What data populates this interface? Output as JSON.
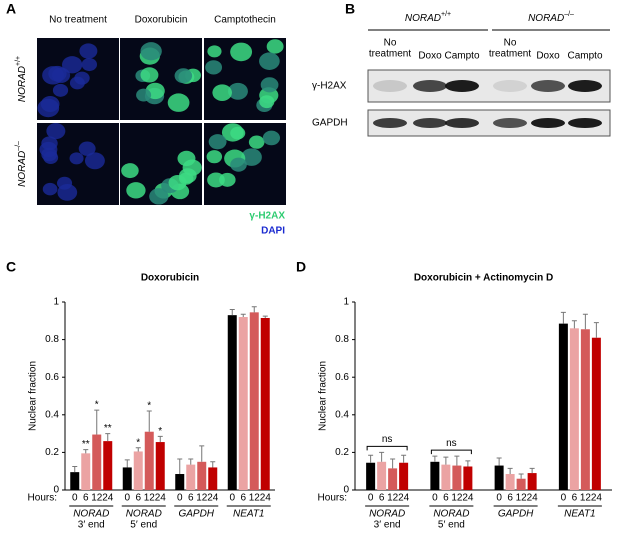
{
  "panel_a": {
    "label": "A",
    "columns": [
      "No treatment",
      "Doxorubicin",
      "Camptothecin"
    ],
    "rows": [
      {
        "name": "NORAD",
        "sup": "+/+"
      },
      {
        "name": "NORAD",
        "sup": "–/–"
      }
    ],
    "legend": [
      "γ-H2AX",
      "DAPI"
    ]
  },
  "panel_b": {
    "label": "B",
    "groups": [
      {
        "name": "NORAD",
        "sup": "+/+"
      },
      {
        "name": "NORAD",
        "sup": "–/–"
      }
    ],
    "lanes": [
      [
        "No",
        "treatment"
      ],
      [
        "Doxo"
      ],
      [
        "Campto"
      ],
      [
        "No",
        "treatment"
      ],
      [
        "Doxo"
      ],
      [
        "Campto"
      ]
    ],
    "rows": [
      "γ-H2AX",
      "GAPDH"
    ]
  },
  "chart_data": [
    {
      "type": "bar",
      "label": "C",
      "title": "Doxorubicin",
      "y_label": "Nuclear fraction",
      "x_prefix": "Hours:",
      "ylim": [
        0,
        1
      ],
      "yticks": [
        0,
        0.2,
        0.4,
        0.6,
        0.8,
        1
      ],
      "categories": [
        "NORAD",
        "NORAD",
        "GAPDH",
        "NEAT1"
      ],
      "category_sublabels": [
        "3′ end",
        "5′ end",
        null,
        null
      ],
      "brackets": [
        null,
        null,
        null,
        null
      ],
      "series": [
        {
          "name": "0",
          "color": "#000000",
          "values": [
            0.095,
            0.12,
            0.085,
            0.93
          ],
          "errors": [
            0.03,
            0.04,
            0.08,
            0.03
          ],
          "stars": [
            null,
            null,
            null,
            null
          ]
        },
        {
          "name": "6",
          "color": "#eba3a3",
          "values": [
            0.195,
            0.205,
            0.135,
            0.92
          ],
          "errors": [
            0.02,
            0.02,
            0.03,
            0.015
          ],
          "stars": [
            "**",
            "*",
            null,
            null
          ]
        },
        {
          "name": "12",
          "color": "#d45a5a",
          "values": [
            0.295,
            0.31,
            0.15,
            0.945
          ],
          "errors": [
            0.13,
            0.11,
            0.085,
            0.03
          ],
          "stars": [
            "*",
            "*",
            null,
            null
          ]
        },
        {
          "name": "24",
          "color": "#c00000",
          "values": [
            0.26,
            0.255,
            0.12,
            0.915
          ],
          "errors": [
            0.04,
            0.03,
            0.03,
            0.01
          ],
          "stars": [
            "**",
            "*",
            null,
            null
          ]
        }
      ]
    },
    {
      "type": "bar",
      "label": "D",
      "title": "Doxorubicin + Actinomycin D",
      "y_label": "Nuclear fraction",
      "x_prefix": "Hours:",
      "ylim": [
        0,
        1
      ],
      "yticks": [
        0,
        0.2,
        0.4,
        0.6,
        0.8,
        1
      ],
      "categories": [
        "NORAD",
        "NORAD",
        "GAPDH",
        "NEAT1"
      ],
      "category_sublabels": [
        "3′ end",
        "5′ end",
        null,
        null
      ],
      "brackets": [
        "ns",
        "ns",
        null,
        null
      ],
      "series": [
        {
          "name": "0",
          "color": "#000000",
          "values": [
            0.145,
            0.15,
            0.13,
            0.885
          ],
          "errors": [
            0.04,
            0.03,
            0.04,
            0.06
          ],
          "stars": [
            null,
            null,
            null,
            null
          ]
        },
        {
          "name": "6",
          "color": "#eba3a3",
          "values": [
            0.15,
            0.135,
            0.085,
            0.86
          ],
          "errors": [
            0.05,
            0.04,
            0.03,
            0.04
          ],
          "stars": [
            null,
            null,
            null,
            null
          ]
        },
        {
          "name": "12",
          "color": "#d45a5a",
          "values": [
            0.115,
            0.13,
            0.06,
            0.855
          ],
          "errors": [
            0.05,
            0.05,
            0.025,
            0.08
          ],
          "stars": [
            null,
            null,
            null,
            null
          ]
        },
        {
          "name": "24",
          "color": "#c00000",
          "values": [
            0.145,
            0.125,
            0.09,
            0.81
          ],
          "errors": [
            0.04,
            0.03,
            0.025,
            0.08
          ],
          "stars": [
            null,
            null,
            null,
            null
          ]
        }
      ]
    }
  ]
}
